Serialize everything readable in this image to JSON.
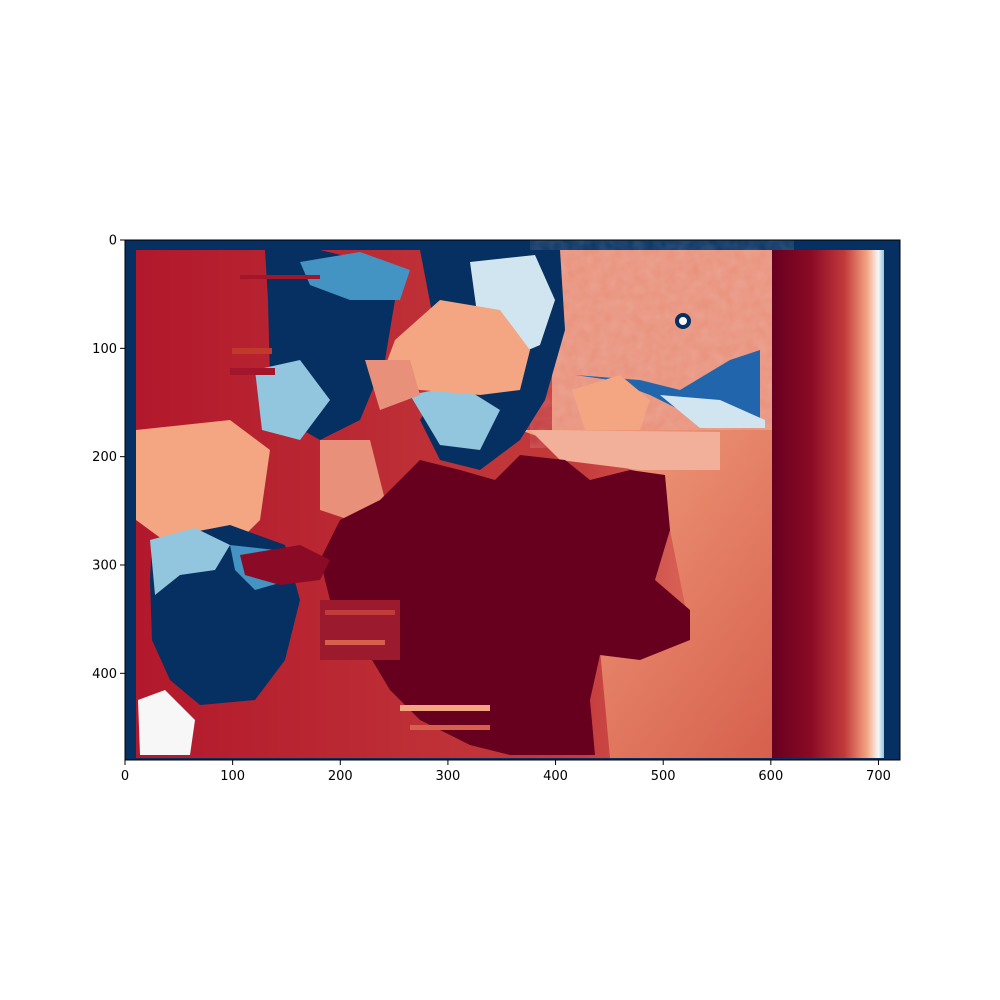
{
  "chart_data": {
    "type": "heatmap",
    "title": "",
    "xlabel": "",
    "ylabel": "",
    "colormap": "RdBu_r",
    "colors": {
      "border": "#053061",
      "dark_red": "#67001f",
      "red": "#b2182b",
      "salmon": "#d6604d",
      "light_salmon": "#f4a582",
      "pale": "#fddbc7",
      "white": "#f7f7f7",
      "light_blue": "#d1e5f0",
      "mid_blue": "#92c5de",
      "blue": "#4393c3",
      "deep_blue": "#2166ac"
    },
    "image_extent": {
      "x": [
        0,
        720
      ],
      "y": [
        0,
        480
      ]
    },
    "xlim": [
      0,
      720
    ],
    "ylim": [
      480,
      0
    ],
    "x_ticks": [
      {
        "value": 0,
        "label": "0"
      },
      {
        "value": 100,
        "label": "100"
      },
      {
        "value": 200,
        "label": "200"
      },
      {
        "value": 300,
        "label": "300"
      },
      {
        "value": 400,
        "label": "400"
      },
      {
        "value": 500,
        "label": "500"
      },
      {
        "value": 600,
        "label": "600"
      },
      {
        "value": 700,
        "label": "700"
      }
    ],
    "y_ticks": [
      {
        "value": 0,
        "label": "0"
      },
      {
        "value": 100,
        "label": "100"
      },
      {
        "value": 200,
        "label": "200"
      },
      {
        "value": 300,
        "label": "300"
      },
      {
        "value": 400,
        "label": "400"
      }
    ]
  }
}
